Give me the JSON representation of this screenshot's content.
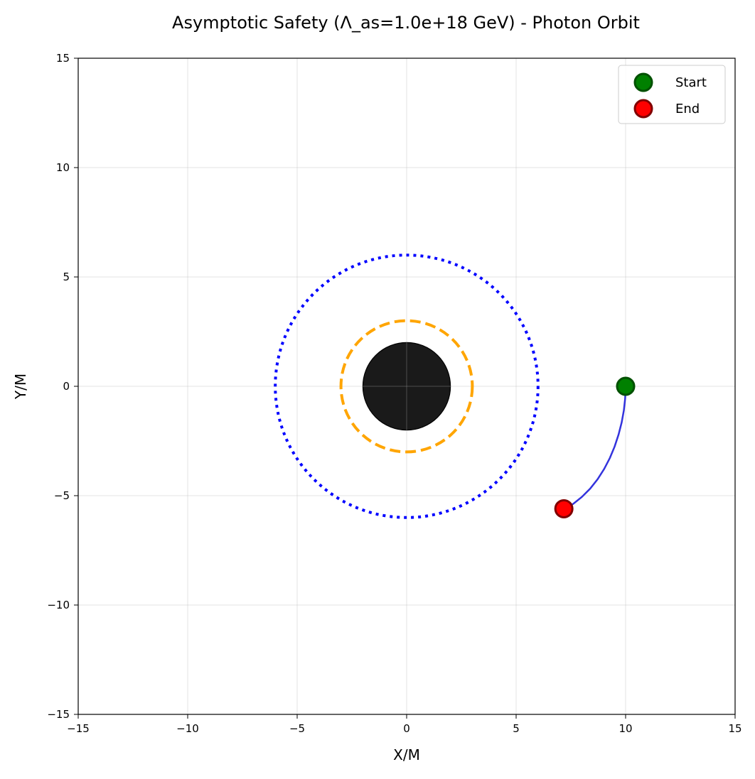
{
  "chart_data": {
    "type": "scatter",
    "title": "Asymptotic Safety (Λ_as=1.0e+18 GeV) - Photon Orbit",
    "xlabel": "X/M",
    "ylabel": "Y/M",
    "xlim": [
      -15,
      15
    ],
    "ylim": [
      -15,
      15
    ],
    "xticks": [
      -15,
      -10,
      -5,
      0,
      5,
      10,
      15
    ],
    "yticks": [
      -15,
      -10,
      -5,
      0,
      5,
      10,
      15
    ],
    "xtick_labels": [
      "−15",
      "−10",
      "−5",
      "0",
      "5",
      "10",
      "15"
    ],
    "ytick_labels": [
      "−15",
      "−10",
      "−5",
      "0",
      "5",
      "10",
      "15"
    ],
    "grid": true,
    "legend_position": "upper right",
    "horizon": {
      "center": [
        0,
        0
      ],
      "radius": 2,
      "color": "#1a1a1a"
    },
    "photon_sphere": {
      "center": [
        0,
        0
      ],
      "radius": 3,
      "color": "#ffa500",
      "style": "dashed"
    },
    "isco": {
      "center": [
        0,
        0
      ],
      "radius": 6,
      "color": "#0000ff",
      "style": "dotted"
    },
    "trajectory": {
      "color": "#3333dd",
      "x": [
        10.0,
        9.98,
        9.92,
        9.82,
        9.68,
        9.5,
        9.28,
        9.02,
        8.72,
        8.38,
        8.0,
        7.6,
        7.18
      ],
      "y": [
        0.0,
        -0.55,
        -1.1,
        -1.65,
        -2.2,
        -2.75,
        -3.28,
        -3.78,
        -4.25,
        -4.68,
        -5.06,
        -5.38,
        -5.6
      ]
    },
    "markers": [
      {
        "name": "Start",
        "x": 10.0,
        "y": 0.0,
        "color": "#008000",
        "edge": "#005000"
      },
      {
        "name": "End",
        "x": 7.18,
        "y": -5.6,
        "color": "#ff0000",
        "edge": "#800000"
      }
    ],
    "legend": [
      "Start",
      "End"
    ]
  }
}
